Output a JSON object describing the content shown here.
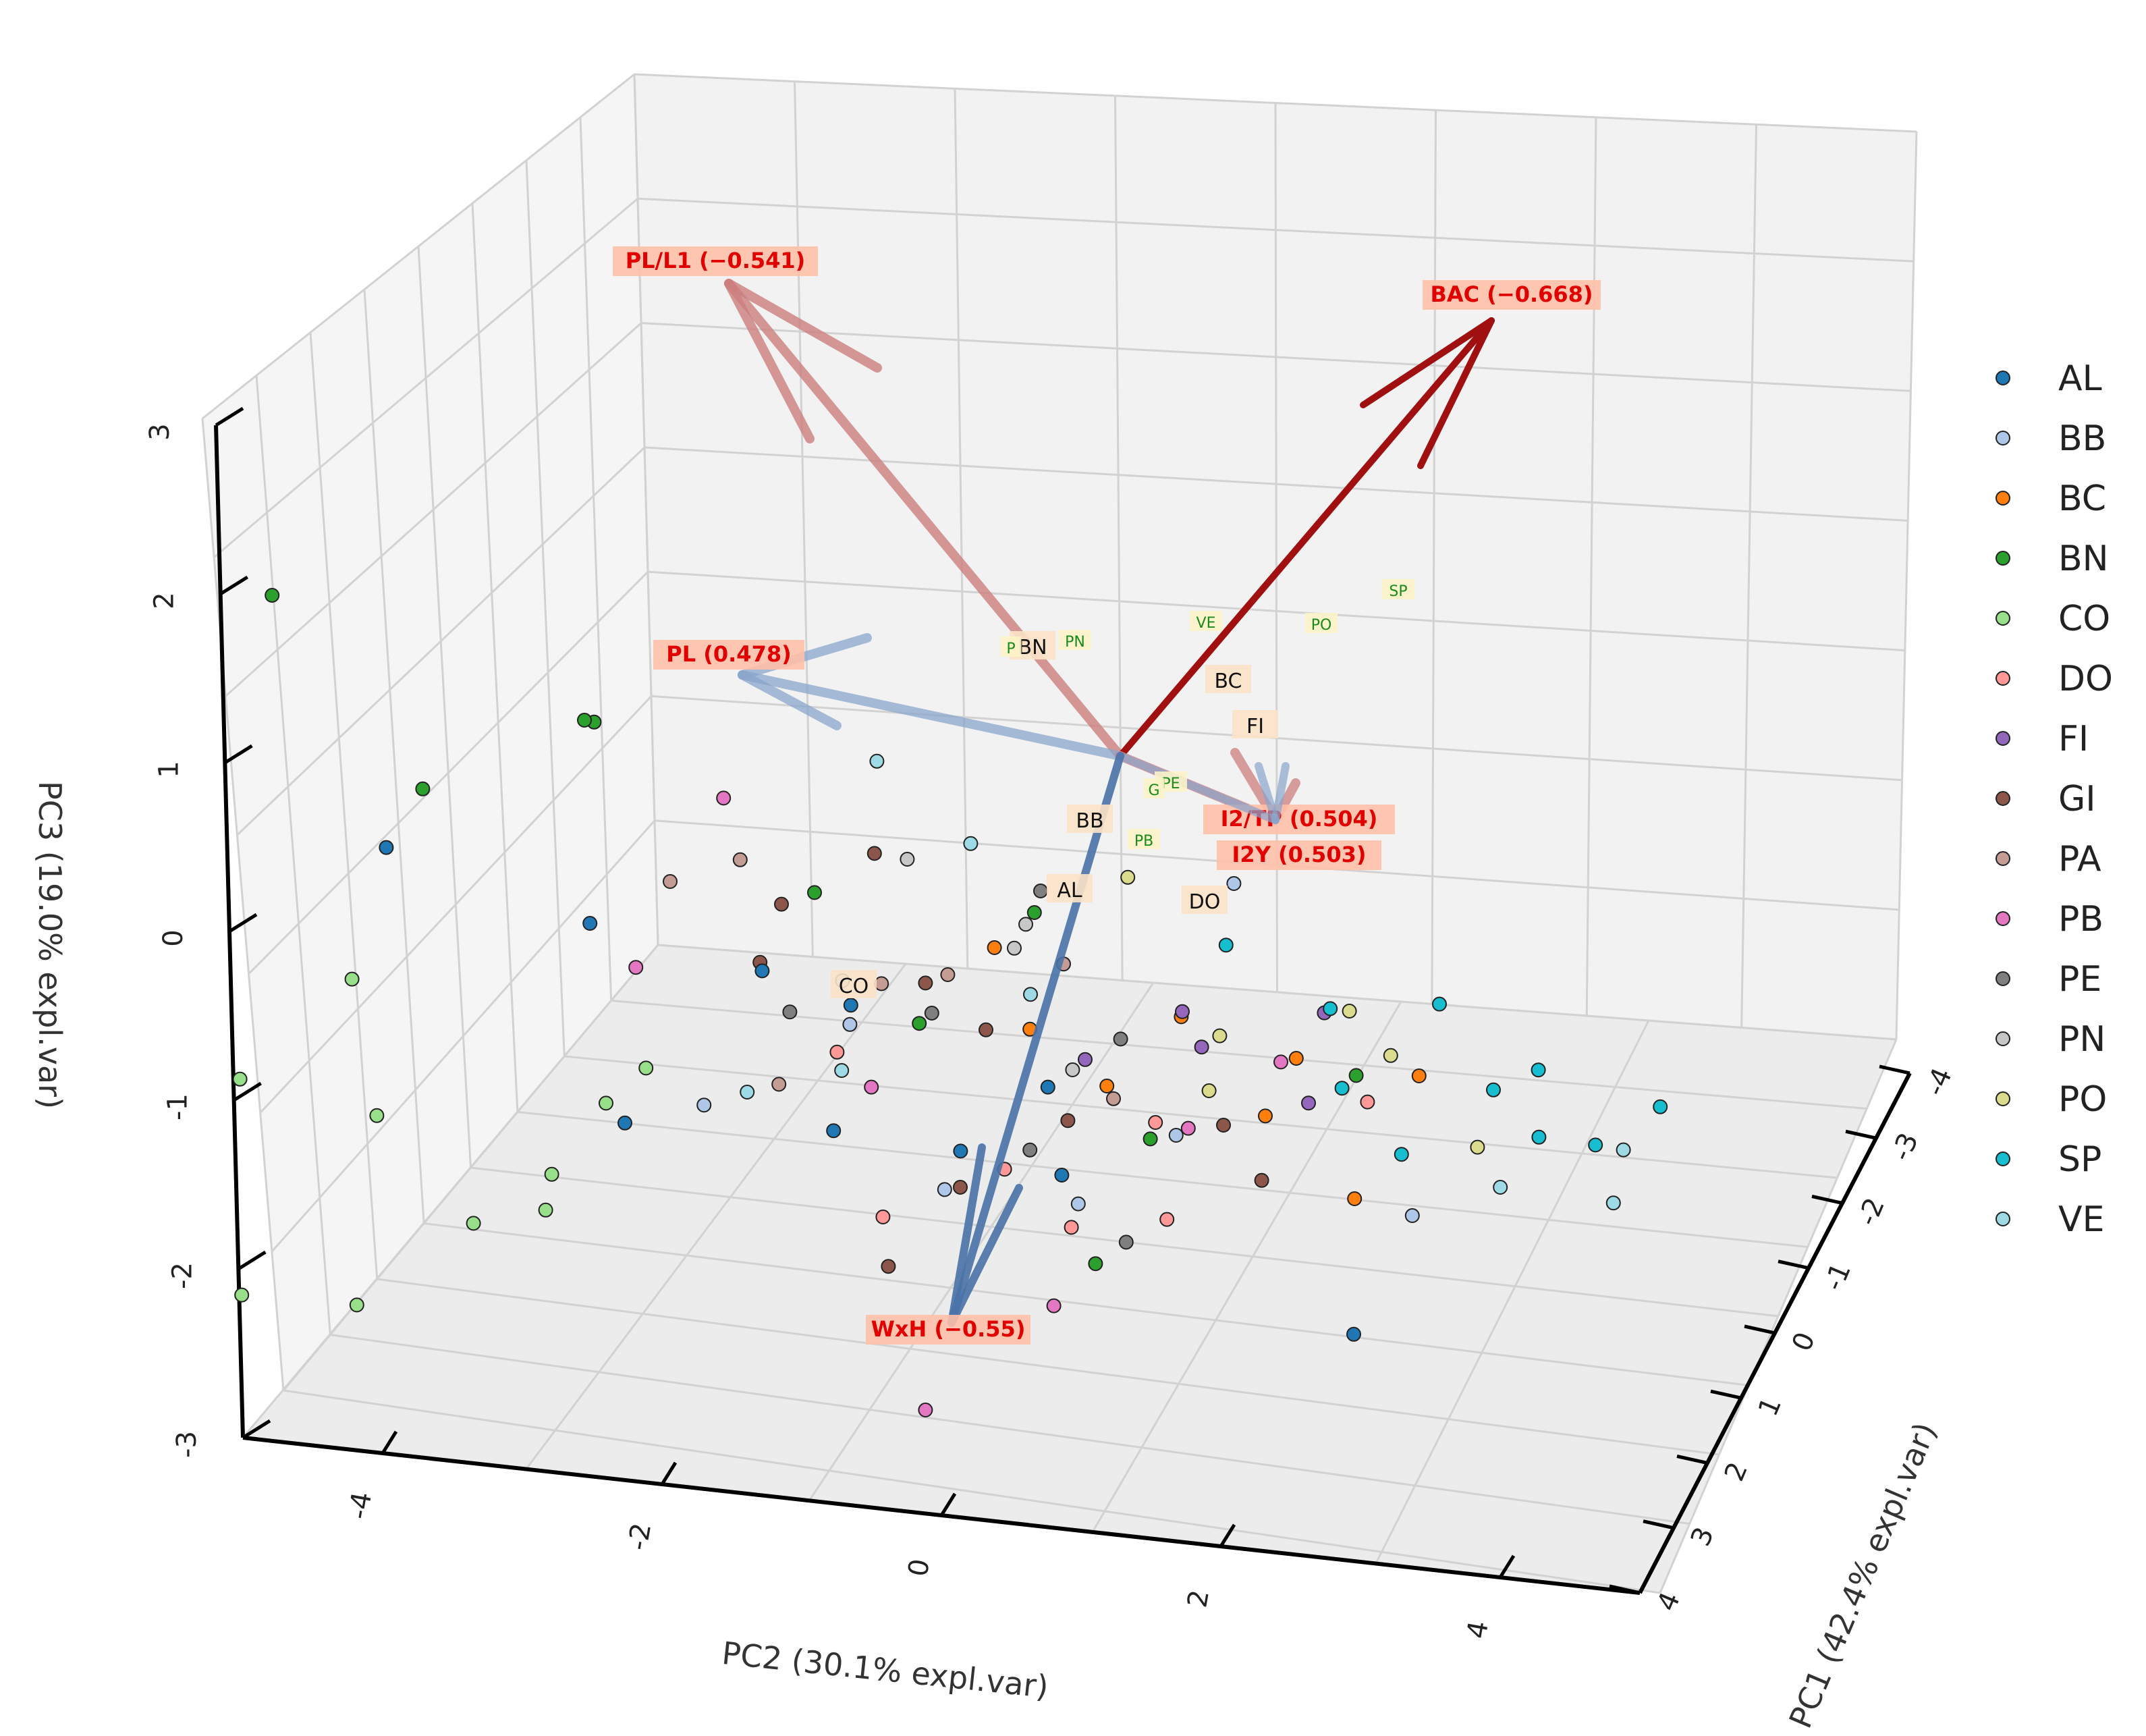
{
  "chart_data": {
    "type": "scatter3d",
    "axes": {
      "x": {
        "label": "PC1 (42.4% expl.var)",
        "ticks": [
          -4,
          -3,
          -2,
          -1,
          0,
          1,
          2,
          3,
          4
        ],
        "lim": [
          -4,
          4
        ]
      },
      "y": {
        "label": "PC2 (30.1% expl.var)",
        "ticks": [
          -4,
          -2,
          0,
          2,
          4
        ],
        "lim": [
          -5,
          5
        ]
      },
      "z": {
        "label": "PC3 (19.0% expl.var)",
        "ticks": [
          -3,
          -2,
          -1,
          0,
          1,
          2,
          3
        ],
        "lim": [
          -3,
          3
        ]
      }
    },
    "grid": true,
    "legend_position": "right",
    "groups": [
      {
        "name": "AL",
        "color": "#1f77b4"
      },
      {
        "name": "BB",
        "color": "#aec7e8"
      },
      {
        "name": "BC",
        "color": "#ff7f0e"
      },
      {
        "name": "BN",
        "color": "#2ca02c"
      },
      {
        "name": "CO",
        "color": "#98df8a"
      },
      {
        "name": "DO",
        "color": "#ff9896"
      },
      {
        "name": "FI",
        "color": "#9467bd"
      },
      {
        "name": "GI",
        "color": "#8c564b"
      },
      {
        "name": "PA",
        "color": "#c49c94"
      },
      {
        "name": "PB",
        "color": "#e377c2"
      },
      {
        "name": "PE",
        "color": "#7f7f7f"
      },
      {
        "name": "PN",
        "color": "#c7c7c7"
      },
      {
        "name": "PO",
        "color": "#dbdb8d"
      },
      {
        "name": "SP",
        "color": "#17becf"
      },
      {
        "name": "VE",
        "color": "#9edae5"
      }
    ],
    "loadings": [
      {
        "label": "PL/L1 (−0.541)",
        "color": "#cd7f7f"
      },
      {
        "label": "BAC (−0.668)",
        "color": "#a01010"
      },
      {
        "label": "PL (0.478)",
        "color": "#8aa6cc"
      },
      {
        "label": "I2/TP (0.504)",
        "color": "#cd7f7f"
      },
      {
        "label": "I2Y (0.503)",
        "color": "#8aa6cc"
      },
      {
        "label": "WxH (−0.55)",
        "color": "#4a73a8"
      }
    ],
    "group_centroid_labels": [
      "AL",
      "BB",
      "BC",
      "BN",
      "CO",
      "DO",
      "FI",
      "PE",
      "PB",
      "PN",
      "PO",
      "SP",
      "VE",
      "P",
      "G"
    ],
    "points": [
      {
        "g": "AL",
        "x": 2.8,
        "y": -3.2,
        "z": 0.6
      },
      {
        "g": "AL",
        "x": 1.9,
        "y": -2.0,
        "z": 0.5
      },
      {
        "g": "AL",
        "x": 0.6,
        "y": -2.1,
        "z": -0.4
      },
      {
        "g": "AL",
        "x": 0.4,
        "y": 0.2,
        "z": -0.3
      },
      {
        "g": "AL",
        "x": 0.8,
        "y": 1.0,
        "z": -0.5
      },
      {
        "g": "AL",
        "x": -0.5,
        "y": -0.9,
        "z": 0.0
      },
      {
        "g": "AL",
        "x": -1.8,
        "y": 2.4,
        "z": -0.6
      },
      {
        "g": "AL",
        "x": 1.0,
        "y": -0.4,
        "z": 0.4
      },
      {
        "g": "AL",
        "x": -0.2,
        "y": -1.3,
        "z": 0.9
      },
      {
        "g": "AL",
        "x": 0.3,
        "y": 0.8,
        "z": 0.2
      },
      {
        "g": "BB",
        "x": -2.4,
        "y": 1.5,
        "z": 2.4
      },
      {
        "g": "BB",
        "x": -1.3,
        "y": -1.0,
        "z": 1.2
      },
      {
        "g": "BB",
        "x": 1.2,
        "y": -1.4,
        "z": -0.4
      },
      {
        "g": "BB",
        "x": 0.2,
        "y": -0.6,
        "z": 0.5
      },
      {
        "g": "BB",
        "x": -0.5,
        "y": 1.5,
        "z": 0.2
      },
      {
        "g": "BB",
        "x": 1.6,
        "y": 1.3,
        "z": -0.9
      },
      {
        "g": "BB",
        "x": -3.2,
        "y": 2.5,
        "z": 0.6
      },
      {
        "g": "BB",
        "x": 0.9,
        "y": 0.2,
        "z": -0.7
      },
      {
        "g": "BC",
        "x": -1.4,
        "y": 3.0,
        "z": 1.0
      },
      {
        "g": "BC",
        "x": -0.9,
        "y": 0.4,
        "z": 0.9
      },
      {
        "g": "BC",
        "x": -2.0,
        "y": 2.0,
        "z": 1.2
      },
      {
        "g": "BC",
        "x": -0.2,
        "y": 2.2,
        "z": 0.3
      },
      {
        "g": "BC",
        "x": 0.6,
        "y": 3.0,
        "z": -0.4
      },
      {
        "g": "BC",
        "x": -1.6,
        "y": 0.0,
        "z": 1.6
      },
      {
        "g": "BC",
        "x": -0.6,
        "y": 1.0,
        "z": 0.5
      },
      {
        "g": "BC",
        "x": 0.1,
        "y": 1.7,
        "z": 0.8
      },
      {
        "g": "BN",
        "x": 0.5,
        "y": -4.5,
        "z": 2.8
      },
      {
        "g": "BN",
        "x": 1.2,
        "y": -2.1,
        "z": 2.0
      },
      {
        "g": "BN",
        "x": -0.2,
        "y": -2.5,
        "z": 2.4
      },
      {
        "g": "BN",
        "x": 2.1,
        "y": -3.1,
        "z": 1.2
      },
      {
        "g": "BN",
        "x": -1.0,
        "y": 1.2,
        "z": 0.3
      },
      {
        "g": "BN",
        "x": 2.4,
        "y": 1.6,
        "z": -1.5
      },
      {
        "g": "BN",
        "x": 1.1,
        "y": 0.1,
        "z": 0.3
      },
      {
        "g": "BN",
        "x": -0.7,
        "y": 0.5,
        "z": 1.6
      },
      {
        "g": "BN",
        "x": 0.3,
        "y": -0.8,
        "z": 1.3
      },
      {
        "g": "BN",
        "x": 1.3,
        "y": 3.2,
        "z": 0.2
      },
      {
        "g": "CO",
        "x": 1.4,
        "y": -4.6,
        "z": -0.6
      },
      {
        "g": "CO",
        "x": 3.2,
        "y": -4.2,
        "z": -2.5
      },
      {
        "g": "CO",
        "x": 3.6,
        "y": -3.3,
        "z": -2.6
      },
      {
        "g": "CO",
        "x": 2.2,
        "y": -2.8,
        "z": -1.6
      },
      {
        "g": "CO",
        "x": 1.6,
        "y": -3.6,
        "z": -0.8
      },
      {
        "g": "CO",
        "x": -0.3,
        "y": -4.2,
        "z": 0.6
      },
      {
        "g": "CO",
        "x": 0.9,
        "y": -2.6,
        "z": -1.1
      },
      {
        "g": "CO",
        "x": 2.8,
        "y": -2.1,
        "z": -1.4
      },
      {
        "g": "CO",
        "x": 1.2,
        "y": -1.8,
        "z": -0.2
      },
      {
        "g": "CO",
        "x": 0.3,
        "y": -2.3,
        "z": -0.2
      },
      {
        "g": "DO",
        "x": 1.9,
        "y": 0.0,
        "z": -1.2
      },
      {
        "g": "DO",
        "x": 0.8,
        "y": 0.6,
        "z": -0.5
      },
      {
        "g": "DO",
        "x": 1.1,
        "y": 1.8,
        "z": -0.8
      },
      {
        "g": "DO",
        "x": 0.1,
        "y": 1.5,
        "z": 0.1
      },
      {
        "g": "DO",
        "x": 0.6,
        "y": -0.6,
        "z": 0.2
      },
      {
        "g": "DO",
        "x": -0.7,
        "y": 2.8,
        "z": 0.6
      },
      {
        "g": "DO",
        "x": 1.4,
        "y": 1.2,
        "z": -1.0
      },
      {
        "g": "FI",
        "x": -1.6,
        "y": 2.3,
        "z": 1.4
      },
      {
        "g": "FI",
        "x": -0.9,
        "y": 1.6,
        "z": 0.9
      },
      {
        "g": "FI",
        "x": 0.2,
        "y": 2.6,
        "z": 0.3
      },
      {
        "g": "FI",
        "x": -0.4,
        "y": 0.9,
        "z": 0.6
      },
      {
        "g": "FI",
        "x": -1.2,
        "y": 1.4,
        "z": 1.2
      },
      {
        "g": "GI",
        "x": -1.5,
        "y": -0.8,
        "z": 2.1
      },
      {
        "g": "GI",
        "x": -0.4,
        "y": -1.2,
        "z": 1.4
      },
      {
        "g": "GI",
        "x": 0.7,
        "y": -1.1,
        "z": 0.7
      },
      {
        "g": "GI",
        "x": 0.4,
        "y": 0.4,
        "z": 0.5
      },
      {
        "g": "GI",
        "x": 1.0,
        "y": 1.1,
        "z": -0.2
      },
      {
        "g": "GI",
        "x": 1.7,
        "y": 0.5,
        "z": -0.9
      },
      {
        "g": "GI",
        "x": 0.2,
        "y": 2.0,
        "z": 0.1
      },
      {
        "g": "GI",
        "x": -0.8,
        "y": -0.3,
        "z": 1.1
      },
      {
        "g": "GI",
        "x": 0.8,
        "y": 2.4,
        "z": -0.4
      },
      {
        "g": "GI",
        "x": 2.2,
        "y": 0.1,
        "z": -1.6
      },
      {
        "g": "PA",
        "x": -0.9,
        "y": -1.6,
        "z": 1.8
      },
      {
        "g": "PA",
        "x": -0.2,
        "y": 0.0,
        "z": 1.0
      },
      {
        "g": "PA",
        "x": 0.5,
        "y": -0.3,
        "z": 0.7
      },
      {
        "g": "PA",
        "x": -1.1,
        "y": 0.6,
        "z": 1.4
      },
      {
        "g": "PA",
        "x": 0.9,
        "y": 1.4,
        "z": 0.0
      },
      {
        "g": "PA",
        "x": 1.5,
        "y": -0.8,
        "z": -0.3
      },
      {
        "g": "PA",
        "x": -0.5,
        "y": -2.0,
        "z": 1.5
      },
      {
        "g": "PB",
        "x": -1.3,
        "y": -1.8,
        "z": 2.3
      },
      {
        "g": "PB",
        "x": 1.0,
        "y": -1.9,
        "z": 0.5
      },
      {
        "g": "PB",
        "x": 1.3,
        "y": -0.2,
        "z": -0.2
      },
      {
        "g": "PB",
        "x": 2.4,
        "y": 1.3,
        "z": -1.8
      },
      {
        "g": "PB",
        "x": 2.9,
        "y": 0.5,
        "z": -2.7
      },
      {
        "g": "PB",
        "x": 0.4,
        "y": 1.8,
        "z": 0.0
      },
      {
        "g": "PB",
        "x": -0.7,
        "y": 2.2,
        "z": 0.8
      },
      {
        "g": "PE",
        "x": -0.9,
        "y": 0.5,
        "z": 1.8
      },
      {
        "g": "PE",
        "x": 0.3,
        "y": 0.0,
        "z": 0.6
      },
      {
        "g": "PE",
        "x": 1.3,
        "y": 0.9,
        "z": -0.5
      },
      {
        "g": "PE",
        "x": -0.2,
        "y": 1.2,
        "z": 0.7
      },
      {
        "g": "PE",
        "x": 1.9,
        "y": 1.7,
        "z": -1.2
      },
      {
        "g": "PE",
        "x": 0.7,
        "y": -0.9,
        "z": 0.4
      },
      {
        "g": "PN",
        "x": -1.2,
        "y": -0.5,
        "z": 2.0
      },
      {
        "g": "PN",
        "x": -0.5,
        "y": 0.4,
        "z": 1.3
      },
      {
        "g": "PN",
        "x": 0.4,
        "y": 1.0,
        "z": 0.3
      },
      {
        "g": "PN",
        "x": -1.7,
        "y": 0.2,
        "z": 1.8
      },
      {
        "g": "PO",
        "x": -1.8,
        "y": 0.9,
        "z": 2.2
      },
      {
        "g": "PO",
        "x": -1.0,
        "y": 2.9,
        "z": 1.0
      },
      {
        "g": "PO",
        "x": 0.3,
        "y": 3.8,
        "z": 0.1
      },
      {
        "g": "PO",
        "x": -1.5,
        "y": 2.5,
        "z": 1.4
      },
      {
        "g": "PO",
        "x": -0.6,
        "y": 1.8,
        "z": 0.9
      },
      {
        "g": "PO",
        "x": 0.6,
        "y": 2.0,
        "z": 0.2
      },
      {
        "g": "SP",
        "x": -2.9,
        "y": 2.8,
        "z": 1.9
      },
      {
        "g": "SP",
        "x": -2.4,
        "y": 3.6,
        "z": 1.4
      },
      {
        "g": "SP",
        "x": -1.9,
        "y": 3.4,
        "z": 1.1
      },
      {
        "g": "SP",
        "x": -1.5,
        "y": 4.2,
        "z": 0.7
      },
      {
        "g": "SP",
        "x": -2.2,
        "y": 2.2,
        "z": 1.6
      },
      {
        "g": "SP",
        "x": -1.1,
        "y": 3.9,
        "z": 0.6
      },
      {
        "g": "SP",
        "x": -0.8,
        "y": 2.6,
        "z": 0.7
      },
      {
        "g": "SP",
        "x": -1.7,
        "y": 1.6,
        "z": 1.8
      },
      {
        "g": "SP",
        "x": -2.6,
        "y": 4.4,
        "z": 1.3
      },
      {
        "g": "SP",
        "x": -0.4,
        "y": 3.1,
        "z": 0.2
      },
      {
        "g": "VE",
        "x": -0.8,
        "y": -0.6,
        "z": 2.5
      },
      {
        "g": "VE",
        "x": -1.4,
        "y": -0.1,
        "z": 2.2
      },
      {
        "g": "VE",
        "x": -0.1,
        "y": 0.6,
        "z": 0.9
      },
      {
        "g": "VE",
        "x": 0.9,
        "y": -0.5,
        "z": 0.0
      },
      {
        "g": "VE",
        "x": -1.9,
        "y": 4.3,
        "z": 0.8
      },
      {
        "g": "VE",
        "x": 0.5,
        "y": 4.0,
        "z": -0.2
      },
      {
        "g": "VE",
        "x": -0.3,
        "y": 4.6,
        "z": 0.0
      },
      {
        "g": "VE",
        "x": 1.6,
        "y": -1.0,
        "z": -0.4
      }
    ]
  }
}
